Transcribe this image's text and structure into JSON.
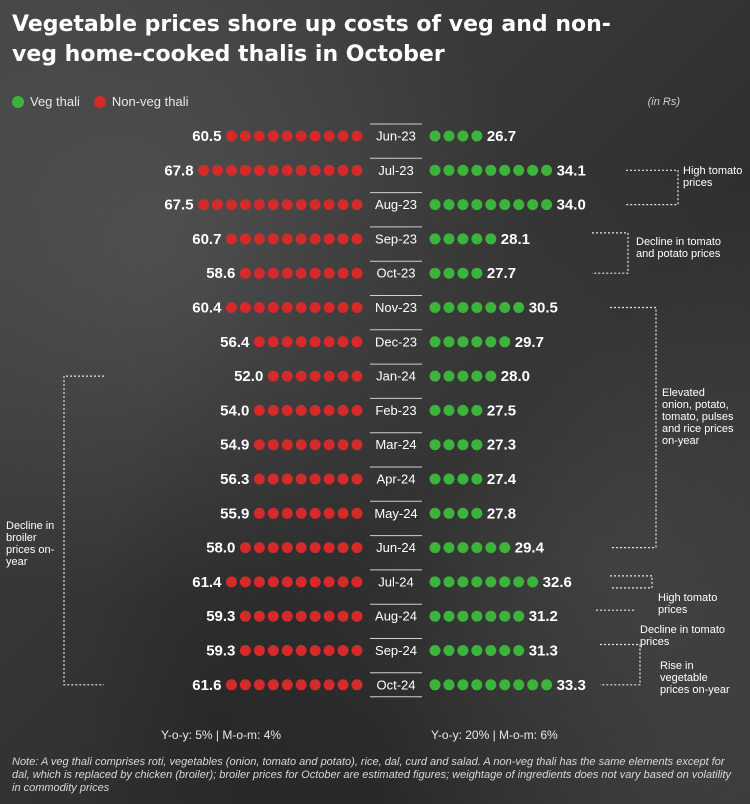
{
  "title": "Vegetable prices shore up costs of veg and non-veg home-cooked thalis in October",
  "units": "(in Rs)",
  "legend": [
    {
      "label": "Veg thali",
      "color": "#3cb43c"
    },
    {
      "label": "Non-veg thali",
      "color": "#d42a2a"
    }
  ],
  "chart_data": {
    "type": "dot-bar",
    "categories": [
      "Jun-23",
      "Jul-23",
      "Aug-23",
      "Sep-23",
      "Oct-23",
      "Nov-23",
      "Dec-23",
      "Jan-24",
      "Feb-23",
      "Mar-24",
      "Apr-24",
      "May-24",
      "Jun-24",
      "Jul-24",
      "Aug-24",
      "Sep-24",
      "Oct-24"
    ],
    "series": [
      {
        "name": "Non-veg thali",
        "color": "#d42a2a",
        "values": [
          60.5,
          67.8,
          67.5,
          60.7,
          58.6,
          60.4,
          56.4,
          52.0,
          54.0,
          54.9,
          56.3,
          55.9,
          58.0,
          61.4,
          59.3,
          59.3,
          61.6
        ],
        "labels": [
          "60.5",
          "67.8",
          "67.5",
          "60.7",
          "58.6",
          "60.4",
          "56.4",
          "52.0",
          "54.0",
          "54.9",
          "56.3",
          "55.9",
          "58.0",
          "61.4",
          "59.3",
          "59.3",
          "61.6"
        ]
      },
      {
        "name": "Veg thali",
        "color": "#3cb43c",
        "values": [
          26.7,
          34.1,
          34.0,
          28.1,
          27.7,
          30.5,
          29.7,
          28.0,
          27.5,
          27.3,
          27.4,
          27.8,
          29.4,
          32.6,
          31.2,
          31.3,
          33.3
        ],
        "labels": [
          "26.7",
          "34.1",
          "34.0",
          "28.1",
          "27.7",
          "30.5",
          "29.7",
          "28.0",
          "27.5",
          "27.3",
          "27.4",
          "27.8",
          "29.4",
          "32.6",
          "31.2",
          "31.3",
          "33.3"
        ]
      }
    ],
    "annotations": {
      "high_tomato_1": "High tomato prices",
      "decline_tomato_potato": "Decline in tomato and potato prices",
      "elevated": "Elevated onion, potato, tomato, pulses and rice prices on-year",
      "high_tomato_2": "High tomato prices",
      "decline_tomato": "Decline in tomato prices",
      "rise_veg": "Rise in vegetable prices on-year",
      "decline_broiler": "Decline in broiler prices on-year"
    }
  },
  "yoy_nonveg": "Y-o-y: 5% | M-o-m: 4%",
  "yoy_veg": "Y-o-y: 20% | M-o-m: 6%",
  "note": "Note: A veg thali comprises roti, vegetables (onion, tomato and potato), rice, dal, curd and salad. A non-veg thali has the same elements except for dal, which is replaced by chicken (broiler); broiler prices for October are estimated figures; weightage of ingredients does not vary based on volatility in commodity prices"
}
